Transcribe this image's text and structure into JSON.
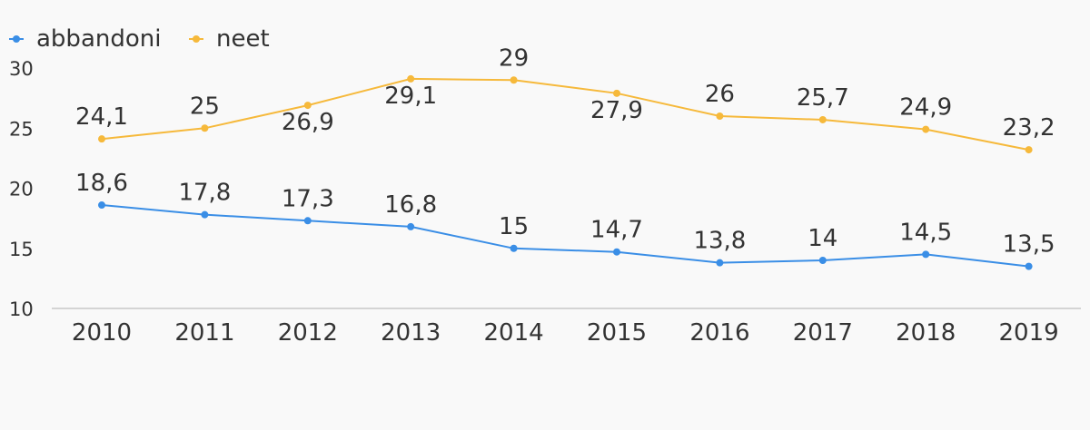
{
  "chart_data": {
    "type": "line",
    "categories": [
      "2010",
      "2011",
      "2012",
      "2013",
      "2014",
      "2015",
      "2016",
      "2017",
      "2018",
      "2019"
    ],
    "series": [
      {
        "name": "abbandoni",
        "color": "#3a8ee6",
        "values": [
          18.6,
          17.8,
          17.3,
          16.8,
          15,
          14.7,
          13.8,
          14,
          14.5,
          13.5
        ],
        "labels": [
          "18,6",
          "17,8",
          "17,3",
          "16,8",
          "15",
          "14,7",
          "13,8",
          "14",
          "14,5",
          "13,5"
        ]
      },
      {
        "name": "neet",
        "color": "#f6b93b",
        "values": [
          24.1,
          25,
          26.9,
          29.1,
          29,
          27.9,
          26,
          25.7,
          24.9,
          23.2
        ],
        "labels": [
          "24,1",
          "25",
          "26,9",
          "29,1",
          "29",
          "27,9",
          "26",
          "25,7",
          "24,9",
          "23,2"
        ]
      }
    ],
    "yticks": [
      "10",
      "15",
      "20",
      "25",
      "30"
    ],
    "ylim": [
      10,
      30
    ],
    "grid": false,
    "legend_position": "top-left",
    "title": "",
    "xlabel": "",
    "ylabel": ""
  }
}
